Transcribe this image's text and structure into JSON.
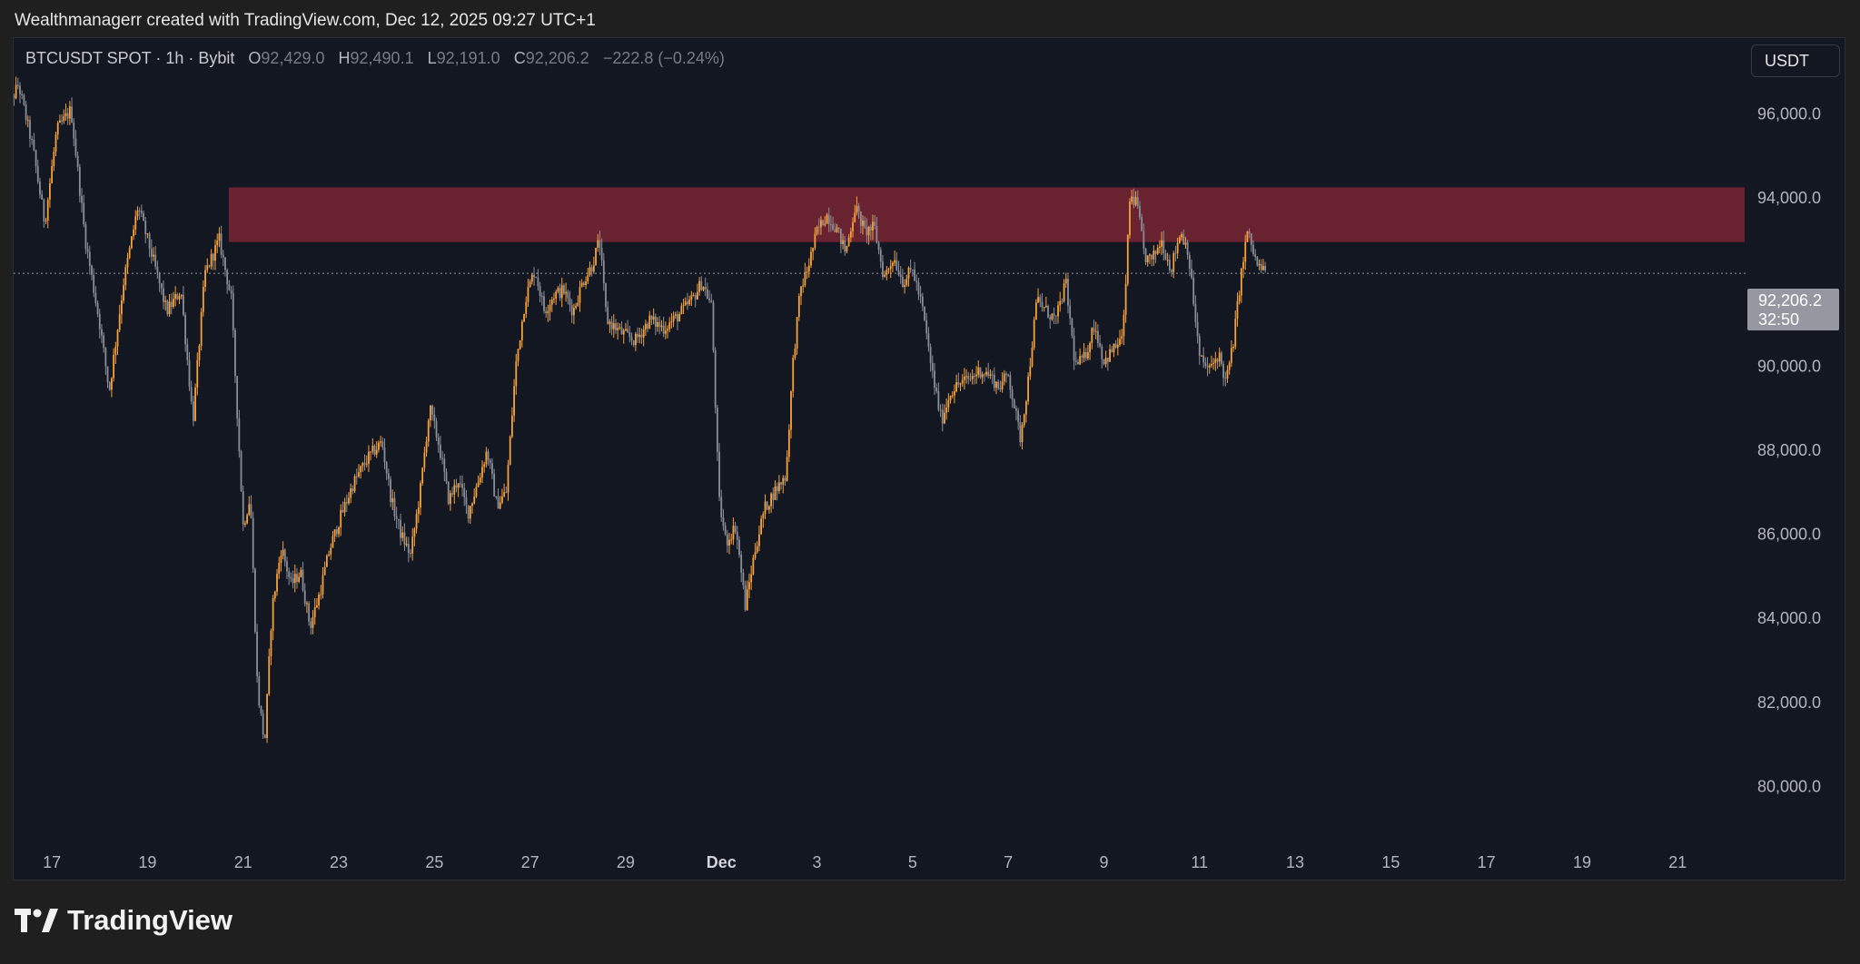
{
  "header": {
    "credit": "Wealthmanagerr created with TradingView.com, Dec 12, 2025 09:27 UTC+1"
  },
  "legend": {
    "symbol": "BTCUSDT SPOT · 1h · Bybit",
    "open_label": "O",
    "open": "92,429.0",
    "high_label": "H",
    "high": "92,490.1",
    "low_label": "L",
    "low": "92,191.0",
    "close_label": "C",
    "close": "92,206.2",
    "change": "−222.8 (−0.24%)"
  },
  "currency_button": "USDT",
  "price_badge": {
    "price": "92,206.2",
    "countdown": "32:50"
  },
  "brand": {
    "name": "TradingView",
    "icon": "tradingview-logo-icon"
  },
  "colors": {
    "background": "#131722",
    "candle_up": "#f7a13b",
    "candle_down": "#8a8e99",
    "zone": "#6e2330",
    "badge": "#9598a1"
  },
  "chart_data": {
    "type": "line",
    "timeframe": "1h",
    "x_ticks": [
      {
        "label": "17",
        "day": 17
      },
      {
        "label": "19",
        "day": 19
      },
      {
        "label": "21",
        "day": 21
      },
      {
        "label": "23",
        "day": 23
      },
      {
        "label": "25",
        "day": 25
      },
      {
        "label": "27",
        "day": 27
      },
      {
        "label": "29",
        "day": 29
      },
      {
        "label": "Dec",
        "day": 31
      },
      {
        "label": "3",
        "day": 33
      },
      {
        "label": "5",
        "day": 35
      },
      {
        "label": "7",
        "day": 37
      },
      {
        "label": "9",
        "day": 39
      },
      {
        "label": "11",
        "day": 41
      },
      {
        "label": "13",
        "day": 43
      },
      {
        "label": "15",
        "day": 45
      },
      {
        "label": "17",
        "day": 47
      },
      {
        "label": "19",
        "day": 49
      },
      {
        "label": "21",
        "day": 51
      }
    ],
    "y_ticks": [
      "96,000.0",
      "94,000.0",
      "90,000.0",
      "88,000.0",
      "86,000.0",
      "84,000.0",
      "82,000.0",
      "80,000.0"
    ],
    "y_tick_values": [
      96000,
      94000,
      90000,
      88000,
      86000,
      84000,
      82000,
      80000
    ],
    "ylim": [
      78800,
      97800
    ],
    "xlim": [
      16.2,
      52.4
    ],
    "resistance_zone": {
      "from_day": 20.7,
      "to_day": 52.4,
      "low": 92950,
      "high": 94250
    },
    "last_price": 92206.2,
    "price_path": [
      [
        16.0,
        95900
      ],
      [
        16.3,
        96700
      ],
      [
        16.6,
        95200
      ],
      [
        16.85,
        93400
      ],
      [
        17.1,
        95600
      ],
      [
        17.4,
        96100
      ],
      [
        17.7,
        93000
      ],
      [
        18.0,
        91000
      ],
      [
        18.2,
        89400
      ],
      [
        18.5,
        92000
      ],
      [
        18.8,
        93800
      ],
      [
        19.1,
        92600
      ],
      [
        19.4,
        91300
      ],
      [
        19.7,
        91800
      ],
      [
        19.95,
        88700
      ],
      [
        20.2,
        92200
      ],
      [
        20.5,
        93000
      ],
      [
        20.75,
        91600
      ],
      [
        21.0,
        86200
      ],
      [
        21.15,
        86900
      ],
      [
        21.3,
        82300
      ],
      [
        21.45,
        81000
      ],
      [
        21.6,
        84200
      ],
      [
        21.8,
        85700
      ],
      [
        22.0,
        84800
      ],
      [
        22.2,
        85100
      ],
      [
        22.4,
        83800
      ],
      [
        22.6,
        84600
      ],
      [
        22.8,
        85600
      ],
      [
        23.0,
        86300
      ],
      [
        23.3,
        87200
      ],
      [
        23.6,
        87800
      ],
      [
        23.9,
        88200
      ],
      [
        24.1,
        86800
      ],
      [
        24.3,
        86000
      ],
      [
        24.5,
        85500
      ],
      [
        24.7,
        87000
      ],
      [
        24.9,
        89000
      ],
      [
        25.1,
        88100
      ],
      [
        25.3,
        86800
      ],
      [
        25.5,
        87300
      ],
      [
        25.7,
        86500
      ],
      [
        25.9,
        87200
      ],
      [
        26.1,
        88000
      ],
      [
        26.3,
        86700
      ],
      [
        26.5,
        87000
      ],
      [
        26.7,
        90000
      ],
      [
        26.9,
        91600
      ],
      [
        27.1,
        92300
      ],
      [
        27.3,
        91300
      ],
      [
        27.5,
        91700
      ],
      [
        27.7,
        91800
      ],
      [
        27.9,
        91300
      ],
      [
        28.1,
        92000
      ],
      [
        28.3,
        92400
      ],
      [
        28.45,
        93000
      ],
      [
        28.6,
        91100
      ],
      [
        28.9,
        90800
      ],
      [
        29.2,
        90600
      ],
      [
        29.5,
        91100
      ],
      [
        29.8,
        90900
      ],
      [
        30.1,
        91200
      ],
      [
        30.4,
        91600
      ],
      [
        30.6,
        92000
      ],
      [
        30.8,
        91400
      ],
      [
        30.95,
        86800
      ],
      [
        31.1,
        85800
      ],
      [
        31.3,
        86200
      ],
      [
        31.5,
        84300
      ],
      [
        31.7,
        85600
      ],
      [
        31.9,
        86600
      ],
      [
        32.1,
        87000
      ],
      [
        32.35,
        87400
      ],
      [
        32.5,
        90100
      ],
      [
        32.65,
        91800
      ],
      [
        32.8,
        92300
      ],
      [
        33.0,
        93200
      ],
      [
        33.2,
        93600
      ],
      [
        33.4,
        93300
      ],
      [
        33.6,
        92700
      ],
      [
        33.8,
        93800
      ],
      [
        34.0,
        93200
      ],
      [
        34.2,
        93300
      ],
      [
        34.4,
        92100
      ],
      [
        34.6,
        92600
      ],
      [
        34.8,
        92000
      ],
      [
        35.0,
        92300
      ],
      [
        35.2,
        91400
      ],
      [
        35.4,
        89900
      ],
      [
        35.6,
        88700
      ],
      [
        35.8,
        89400
      ],
      [
        36.0,
        89600
      ],
      [
        36.2,
        89700
      ],
      [
        36.4,
        89900
      ],
      [
        36.6,
        89800
      ],
      [
        36.8,
        89500
      ],
      [
        37.0,
        89800
      ],
      [
        37.25,
        88300
      ],
      [
        37.4,
        89500
      ],
      [
        37.6,
        91600
      ],
      [
        37.8,
        91300
      ],
      [
        38.0,
        91100
      ],
      [
        38.2,
        92000
      ],
      [
        38.4,
        90000
      ],
      [
        38.6,
        90200
      ],
      [
        38.8,
        91000
      ],
      [
        39.0,
        90100
      ],
      [
        39.2,
        90400
      ],
      [
        39.4,
        90700
      ],
      [
        39.55,
        94100
      ],
      [
        39.7,
        93800
      ],
      [
        39.85,
        92600
      ],
      [
        40.0,
        92500
      ],
      [
        40.2,
        93000
      ],
      [
        40.4,
        92300
      ],
      [
        40.6,
        93200
      ],
      [
        40.75,
        92800
      ],
      [
        40.85,
        91800
      ],
      [
        41.0,
        90200
      ],
      [
        41.2,
        89900
      ],
      [
        41.4,
        90300
      ],
      [
        41.55,
        89600
      ],
      [
        41.7,
        90500
      ],
      [
        41.85,
        92000
      ],
      [
        42.0,
        93200
      ],
      [
        42.2,
        92400
      ],
      [
        42.4,
        92206
      ]
    ]
  }
}
